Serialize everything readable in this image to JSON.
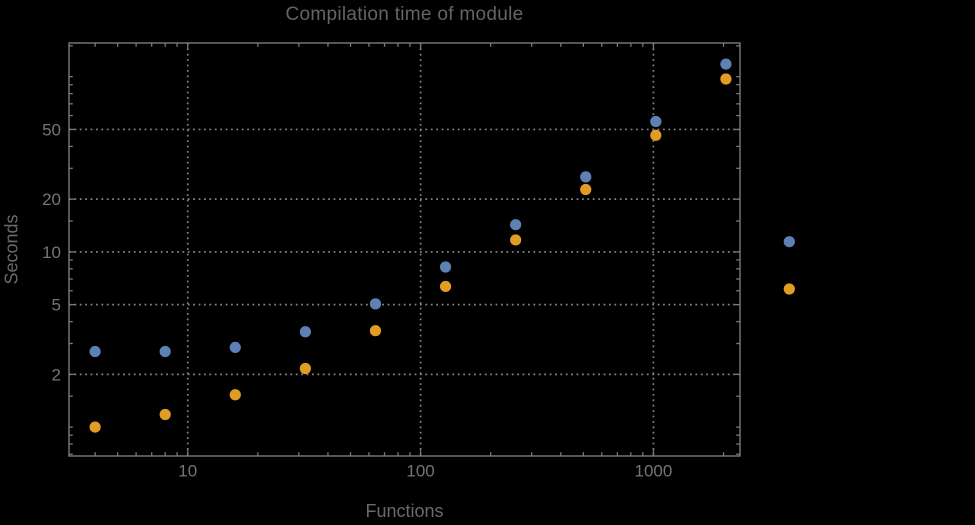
{
  "chart_data": {
    "type": "scatter",
    "title": "Compilation time of module",
    "xlabel": "Functions",
    "ylabel": "Seconds",
    "x_scale": "log",
    "y_scale": "log",
    "xlim": [
      3.09,
      2354
    ],
    "ylim": [
      0.684,
      155.7
    ],
    "grid": "dotted gray lines at labeled major ticks, framed plot, ticks mirrored on all four sides",
    "legend_position": "right of frame, two color markers, label text not visible",
    "x": [
      4,
      8,
      16,
      32,
      64,
      128,
      256,
      512,
      1024,
      2048
    ],
    "series": [
      {
        "name": "blue",
        "color": "#5e81b5",
        "values": [
          2.7,
          2.7,
          2.85,
          3.5,
          5.05,
          8.2,
          14.3,
          26.8,
          55.5,
          118
        ]
      },
      {
        "name": "orange",
        "color": "#e19c24",
        "values": [
          1.0,
          1.18,
          1.53,
          2.16,
          3.55,
          6.35,
          11.7,
          22.7,
          46.3,
          97
        ]
      }
    ],
    "x_major_ticks": [
      {
        "value": 10,
        "label": "10"
      },
      {
        "value": 100,
        "label": "100"
      },
      {
        "value": 1000,
        "label": "1000"
      }
    ],
    "y_major_ticks": [
      {
        "value": 2,
        "label": "2"
      },
      {
        "value": 5,
        "label": "5"
      },
      {
        "value": 10,
        "label": "10"
      },
      {
        "value": 20,
        "label": "20"
      },
      {
        "value": 50,
        "label": "50"
      }
    ],
    "x_minor_ticks": [
      4,
      5,
      6,
      7,
      8,
      9,
      20,
      30,
      40,
      50,
      60,
      70,
      80,
      90,
      200,
      300,
      400,
      500,
      600,
      700,
      800,
      900,
      2000
    ],
    "y_minor_ticks": [
      0.7,
      0.8,
      0.9,
      1,
      1.5,
      3,
      4,
      6,
      7,
      8,
      9,
      15,
      30,
      40,
      60,
      70,
      80,
      90,
      100,
      150
    ]
  },
  "legend": {
    "markers": [
      {
        "name": "blue",
        "color": "#5e81b5"
      },
      {
        "name": "orange",
        "color": "#e19c24"
      }
    ]
  },
  "colors": {
    "background": "#000000",
    "series_blue": "#5e81b5",
    "series_orange": "#e19c24",
    "frame": "#7a7a7a",
    "grid": "#828282",
    "tick_labels": "#757575",
    "title": "#646464",
    "axis_labels": "#6a6a6a"
  }
}
